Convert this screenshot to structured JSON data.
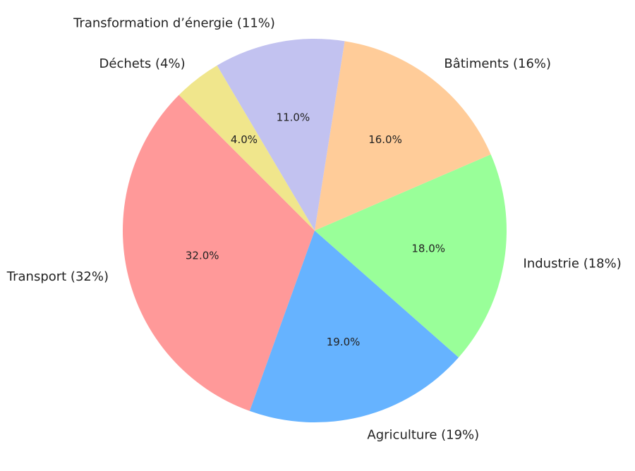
{
  "chart_data": {
    "type": "pie",
    "title": "",
    "start_angle_deg": 135,
    "direction": "counterclockwise",
    "slices": [
      {
        "label": "Transport (32%)",
        "value": 32.0,
        "pct_text": "32.0%",
        "color": "#ff9999"
      },
      {
        "label": "Agriculture (19%)",
        "value": 19.0,
        "pct_text": "19.0%",
        "color": "#66b3ff"
      },
      {
        "label": "Industrie (18%)",
        "value": 18.0,
        "pct_text": "18.0%",
        "color": "#99ff99"
      },
      {
        "label": "Bâtiments (16%)",
        "value": 16.0,
        "pct_text": "16.0%",
        "color": "#ffcc99"
      },
      {
        "label": "Transformation d’énergie (11%)",
        "value": 11.0,
        "pct_text": "11.0%",
        "color": "#c2c2f0"
      },
      {
        "label": "Déchets (4%)",
        "value": 4.0,
        "pct_text": "4.0%",
        "color": "#f0e68c"
      }
    ]
  }
}
